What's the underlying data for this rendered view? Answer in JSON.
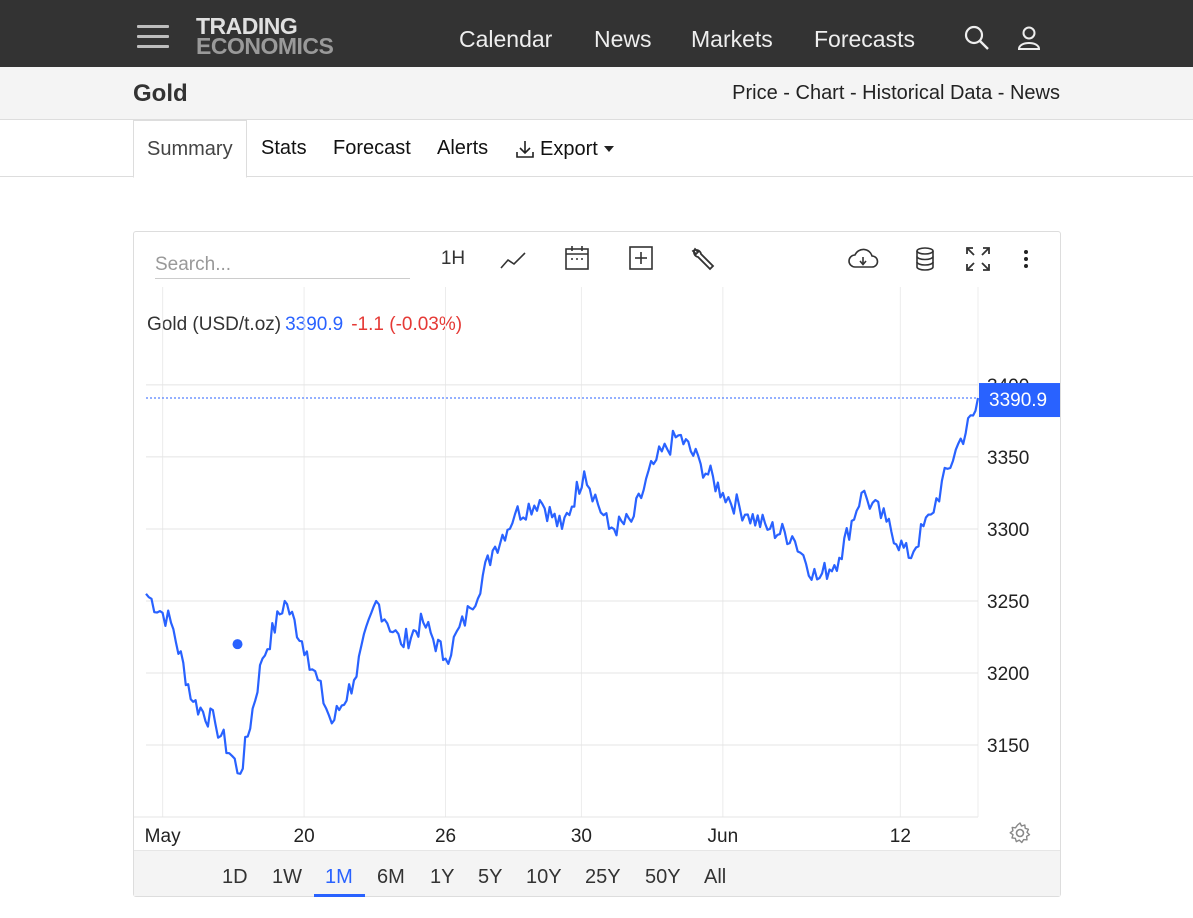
{
  "nav": {
    "logo_line1": "TRADING",
    "logo_line2": "ECONOMICS",
    "links": [
      "Calendar",
      "News",
      "Markets",
      "Forecasts"
    ]
  },
  "subheader": {
    "title": "Gold",
    "crumbs": "Price - Chart - Historical Data - News"
  },
  "tabs": {
    "summary": "Summary",
    "stats": "Stats",
    "forecast": "Forecast",
    "alerts": "Alerts",
    "export": "Export"
  },
  "chart_toolbar": {
    "search_placeholder": "Search...",
    "interval": "1H"
  },
  "legend": {
    "name": "Gold (USD/t.oz)",
    "price": "3390.9",
    "change": "-1.1 (-0.03%)"
  },
  "ranges": [
    "1D",
    "1W",
    "1M",
    "6M",
    "1Y",
    "5Y",
    "10Y",
    "25Y",
    "50Y",
    "All"
  ],
  "active_range": "1M",
  "colors": {
    "line": "#2962ff",
    "down": "#e53935",
    "nav_bg": "#333333"
  },
  "chart_data": {
    "type": "line",
    "title": "",
    "series": [
      {
        "name": "Gold (USD/t.oz)",
        "x": [
          0,
          0.9,
          1.7,
          2.5,
          3.4,
          4.2,
          5,
          5.8,
          6.7,
          7.5,
          8.3,
          9.2,
          10,
          10.8,
          11.7,
          12.5,
          13.3,
          14.2,
          15,
          15.8,
          16.7,
          17.5,
          18.3,
          19.2,
          20,
          20.8,
          21.7,
          22.5,
          23.3,
          24.2,
          25,
          25.8,
          26.7,
          27.5,
          28.3,
          29.2,
          30
        ],
        "y": [
          3255,
          3235,
          3180,
          3165,
          3130,
          3210,
          3250,
          3215,
          3165,
          3195,
          3250,
          3220,
          3235,
          3210,
          3245,
          3285,
          3310,
          3320,
          3300,
          3340,
          3300,
          3305,
          3345,
          3365,
          3345,
          3325,
          3310,
          3300,
          3295,
          3265,
          3280,
          3325,
          3305,
          3280,
          3310,
          3355,
          3385
        ],
        "close": 3390.9
      }
    ],
    "xlabel": "",
    "ylabel": "",
    "x_tick_labels": [
      "May",
      "20",
      "26",
      "30",
      "Jun",
      "12"
    ],
    "y_ticks": [
      3150,
      3200,
      3250,
      3300,
      3350,
      3400
    ],
    "ylim": [
      3100,
      3418
    ],
    "last_price_label": "3390.9",
    "grid": true
  }
}
